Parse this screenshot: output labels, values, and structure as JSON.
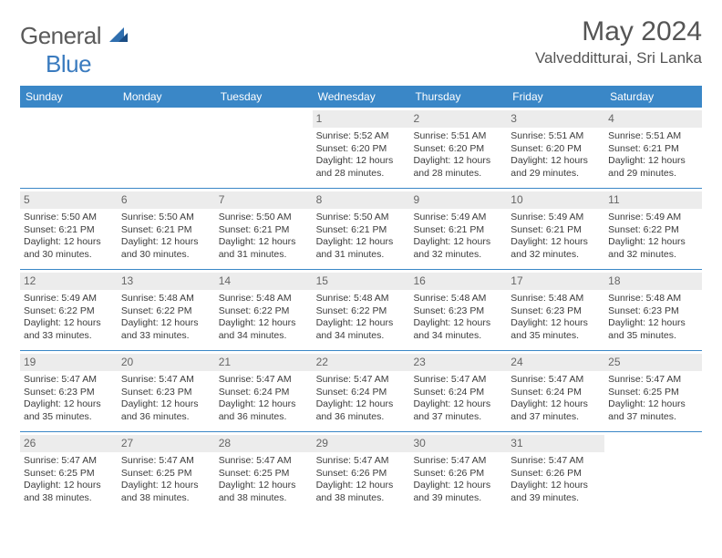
{
  "brand": {
    "part1": "General",
    "part2": "Blue"
  },
  "title": "May 2024",
  "location": "Valvedditturai, Sri Lanka",
  "colors": {
    "header_bar": "#3a87c7",
    "daynum_bg": "#ececec",
    "text": "#3b3b3b",
    "title_text": "#555555",
    "rule": "#3a87c7"
  },
  "weekdays": [
    "Sunday",
    "Monday",
    "Tuesday",
    "Wednesday",
    "Thursday",
    "Friday",
    "Saturday"
  ],
  "weeks": [
    [
      {
        "n": "",
        "sr": "",
        "ss": "",
        "dl": ""
      },
      {
        "n": "",
        "sr": "",
        "ss": "",
        "dl": ""
      },
      {
        "n": "",
        "sr": "",
        "ss": "",
        "dl": ""
      },
      {
        "n": "1",
        "sr": "Sunrise: 5:52 AM",
        "ss": "Sunset: 6:20 PM",
        "dl": "Daylight: 12 hours and 28 minutes."
      },
      {
        "n": "2",
        "sr": "Sunrise: 5:51 AM",
        "ss": "Sunset: 6:20 PM",
        "dl": "Daylight: 12 hours and 28 minutes."
      },
      {
        "n": "3",
        "sr": "Sunrise: 5:51 AM",
        "ss": "Sunset: 6:20 PM",
        "dl": "Daylight: 12 hours and 29 minutes."
      },
      {
        "n": "4",
        "sr": "Sunrise: 5:51 AM",
        "ss": "Sunset: 6:21 PM",
        "dl": "Daylight: 12 hours and 29 minutes."
      }
    ],
    [
      {
        "n": "5",
        "sr": "Sunrise: 5:50 AM",
        "ss": "Sunset: 6:21 PM",
        "dl": "Daylight: 12 hours and 30 minutes."
      },
      {
        "n": "6",
        "sr": "Sunrise: 5:50 AM",
        "ss": "Sunset: 6:21 PM",
        "dl": "Daylight: 12 hours and 30 minutes."
      },
      {
        "n": "7",
        "sr": "Sunrise: 5:50 AM",
        "ss": "Sunset: 6:21 PM",
        "dl": "Daylight: 12 hours and 31 minutes."
      },
      {
        "n": "8",
        "sr": "Sunrise: 5:50 AM",
        "ss": "Sunset: 6:21 PM",
        "dl": "Daylight: 12 hours and 31 minutes."
      },
      {
        "n": "9",
        "sr": "Sunrise: 5:49 AM",
        "ss": "Sunset: 6:21 PM",
        "dl": "Daylight: 12 hours and 32 minutes."
      },
      {
        "n": "10",
        "sr": "Sunrise: 5:49 AM",
        "ss": "Sunset: 6:21 PM",
        "dl": "Daylight: 12 hours and 32 minutes."
      },
      {
        "n": "11",
        "sr": "Sunrise: 5:49 AM",
        "ss": "Sunset: 6:22 PM",
        "dl": "Daylight: 12 hours and 32 minutes."
      }
    ],
    [
      {
        "n": "12",
        "sr": "Sunrise: 5:49 AM",
        "ss": "Sunset: 6:22 PM",
        "dl": "Daylight: 12 hours and 33 minutes."
      },
      {
        "n": "13",
        "sr": "Sunrise: 5:48 AM",
        "ss": "Sunset: 6:22 PM",
        "dl": "Daylight: 12 hours and 33 minutes."
      },
      {
        "n": "14",
        "sr": "Sunrise: 5:48 AM",
        "ss": "Sunset: 6:22 PM",
        "dl": "Daylight: 12 hours and 34 minutes."
      },
      {
        "n": "15",
        "sr": "Sunrise: 5:48 AM",
        "ss": "Sunset: 6:22 PM",
        "dl": "Daylight: 12 hours and 34 minutes."
      },
      {
        "n": "16",
        "sr": "Sunrise: 5:48 AM",
        "ss": "Sunset: 6:23 PM",
        "dl": "Daylight: 12 hours and 34 minutes."
      },
      {
        "n": "17",
        "sr": "Sunrise: 5:48 AM",
        "ss": "Sunset: 6:23 PM",
        "dl": "Daylight: 12 hours and 35 minutes."
      },
      {
        "n": "18",
        "sr": "Sunrise: 5:48 AM",
        "ss": "Sunset: 6:23 PM",
        "dl": "Daylight: 12 hours and 35 minutes."
      }
    ],
    [
      {
        "n": "19",
        "sr": "Sunrise: 5:47 AM",
        "ss": "Sunset: 6:23 PM",
        "dl": "Daylight: 12 hours and 35 minutes."
      },
      {
        "n": "20",
        "sr": "Sunrise: 5:47 AM",
        "ss": "Sunset: 6:23 PM",
        "dl": "Daylight: 12 hours and 36 minutes."
      },
      {
        "n": "21",
        "sr": "Sunrise: 5:47 AM",
        "ss": "Sunset: 6:24 PM",
        "dl": "Daylight: 12 hours and 36 minutes."
      },
      {
        "n": "22",
        "sr": "Sunrise: 5:47 AM",
        "ss": "Sunset: 6:24 PM",
        "dl": "Daylight: 12 hours and 36 minutes."
      },
      {
        "n": "23",
        "sr": "Sunrise: 5:47 AM",
        "ss": "Sunset: 6:24 PM",
        "dl": "Daylight: 12 hours and 37 minutes."
      },
      {
        "n": "24",
        "sr": "Sunrise: 5:47 AM",
        "ss": "Sunset: 6:24 PM",
        "dl": "Daylight: 12 hours and 37 minutes."
      },
      {
        "n": "25",
        "sr": "Sunrise: 5:47 AM",
        "ss": "Sunset: 6:25 PM",
        "dl": "Daylight: 12 hours and 37 minutes."
      }
    ],
    [
      {
        "n": "26",
        "sr": "Sunrise: 5:47 AM",
        "ss": "Sunset: 6:25 PM",
        "dl": "Daylight: 12 hours and 38 minutes."
      },
      {
        "n": "27",
        "sr": "Sunrise: 5:47 AM",
        "ss": "Sunset: 6:25 PM",
        "dl": "Daylight: 12 hours and 38 minutes."
      },
      {
        "n": "28",
        "sr": "Sunrise: 5:47 AM",
        "ss": "Sunset: 6:25 PM",
        "dl": "Daylight: 12 hours and 38 minutes."
      },
      {
        "n": "29",
        "sr": "Sunrise: 5:47 AM",
        "ss": "Sunset: 6:26 PM",
        "dl": "Daylight: 12 hours and 38 minutes."
      },
      {
        "n": "30",
        "sr": "Sunrise: 5:47 AM",
        "ss": "Sunset: 6:26 PM",
        "dl": "Daylight: 12 hours and 39 minutes."
      },
      {
        "n": "31",
        "sr": "Sunrise: 5:47 AM",
        "ss": "Sunset: 6:26 PM",
        "dl": "Daylight: 12 hours and 39 minutes."
      },
      {
        "n": "",
        "sr": "",
        "ss": "",
        "dl": ""
      }
    ]
  ]
}
